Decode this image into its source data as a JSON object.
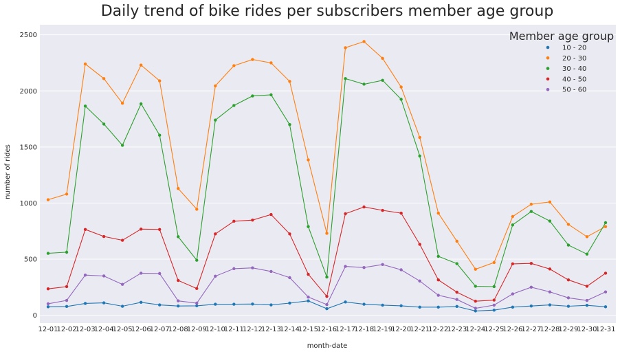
{
  "chart_data": {
    "type": "line",
    "title": "Daily trend of bike rides per subscribers member age group",
    "xlabel": "month-date",
    "ylabel": "number of rides",
    "ylim": [
      -70,
      2590
    ],
    "yticks": [
      0,
      500,
      1000,
      1500,
      2000,
      2500
    ],
    "grid": true,
    "legend": {
      "title": "Member age group",
      "placement": "top-right"
    },
    "categories": [
      "12-01",
      "12-02",
      "12-03",
      "12-04",
      "12-05",
      "12-06",
      "12-07",
      "12-08",
      "12-09",
      "12-10",
      "12-11",
      "12-12",
      "12-13",
      "12-14",
      "12-15",
      "12-16",
      "12-17",
      "12-18",
      "12-19",
      "12-20",
      "12-21",
      "12-22",
      "12-23",
      "12-24",
      "12-25",
      "12-26",
      "12-27",
      "12-28",
      "12-29",
      "12-30",
      "12-31"
    ],
    "series": [
      {
        "name": "10 - 20",
        "color": "#1f77b4",
        "values": [
          75,
          78,
          105,
          110,
          80,
          115,
          92,
          82,
          84,
          98,
          98,
          100,
          92,
          108,
          128,
          58,
          118,
          98,
          90,
          84,
          72,
          72,
          78,
          38,
          45,
          72,
          82,
          92,
          80,
          88,
          75
        ]
      },
      {
        "name": "20 - 30",
        "color": "#ff7f0e",
        "values": [
          1030,
          1080,
          2240,
          2110,
          1890,
          2230,
          2090,
          1130,
          945,
          2045,
          2225,
          2280,
          2250,
          2085,
          1385,
          730,
          2385,
          2440,
          2290,
          2035,
          1585,
          910,
          660,
          410,
          470,
          880,
          990,
          1010,
          810,
          700,
          790
        ]
      },
      {
        "name": "30 - 40",
        "color": "#2ca02c",
        "values": [
          552,
          562,
          1865,
          1705,
          1515,
          1885,
          1605,
          700,
          490,
          1740,
          1870,
          1955,
          1965,
          1700,
          790,
          340,
          2110,
          2060,
          2095,
          1925,
          1420,
          525,
          460,
          258,
          255,
          805,
          925,
          840,
          625,
          545,
          825
        ]
      },
      {
        "name": "40 - 50",
        "color": "#d62728",
        "values": [
          235,
          255,
          765,
          702,
          668,
          768,
          765,
          310,
          238,
          725,
          838,
          848,
          898,
          725,
          365,
          168,
          905,
          965,
          935,
          910,
          632,
          315,
          205,
          125,
          135,
          458,
          462,
          412,
          315,
          258,
          375
        ]
      },
      {
        "name": "50 - 60",
        "color": "#9467bd",
        "values": [
          102,
          132,
          358,
          350,
          275,
          375,
          372,
          128,
          108,
          348,
          415,
          422,
          390,
          335,
          162,
          95,
          435,
          425,
          452,
          405,
          305,
          178,
          140,
          62,
          90,
          190,
          250,
          208,
          155,
          132,
          208
        ]
      }
    ]
  }
}
